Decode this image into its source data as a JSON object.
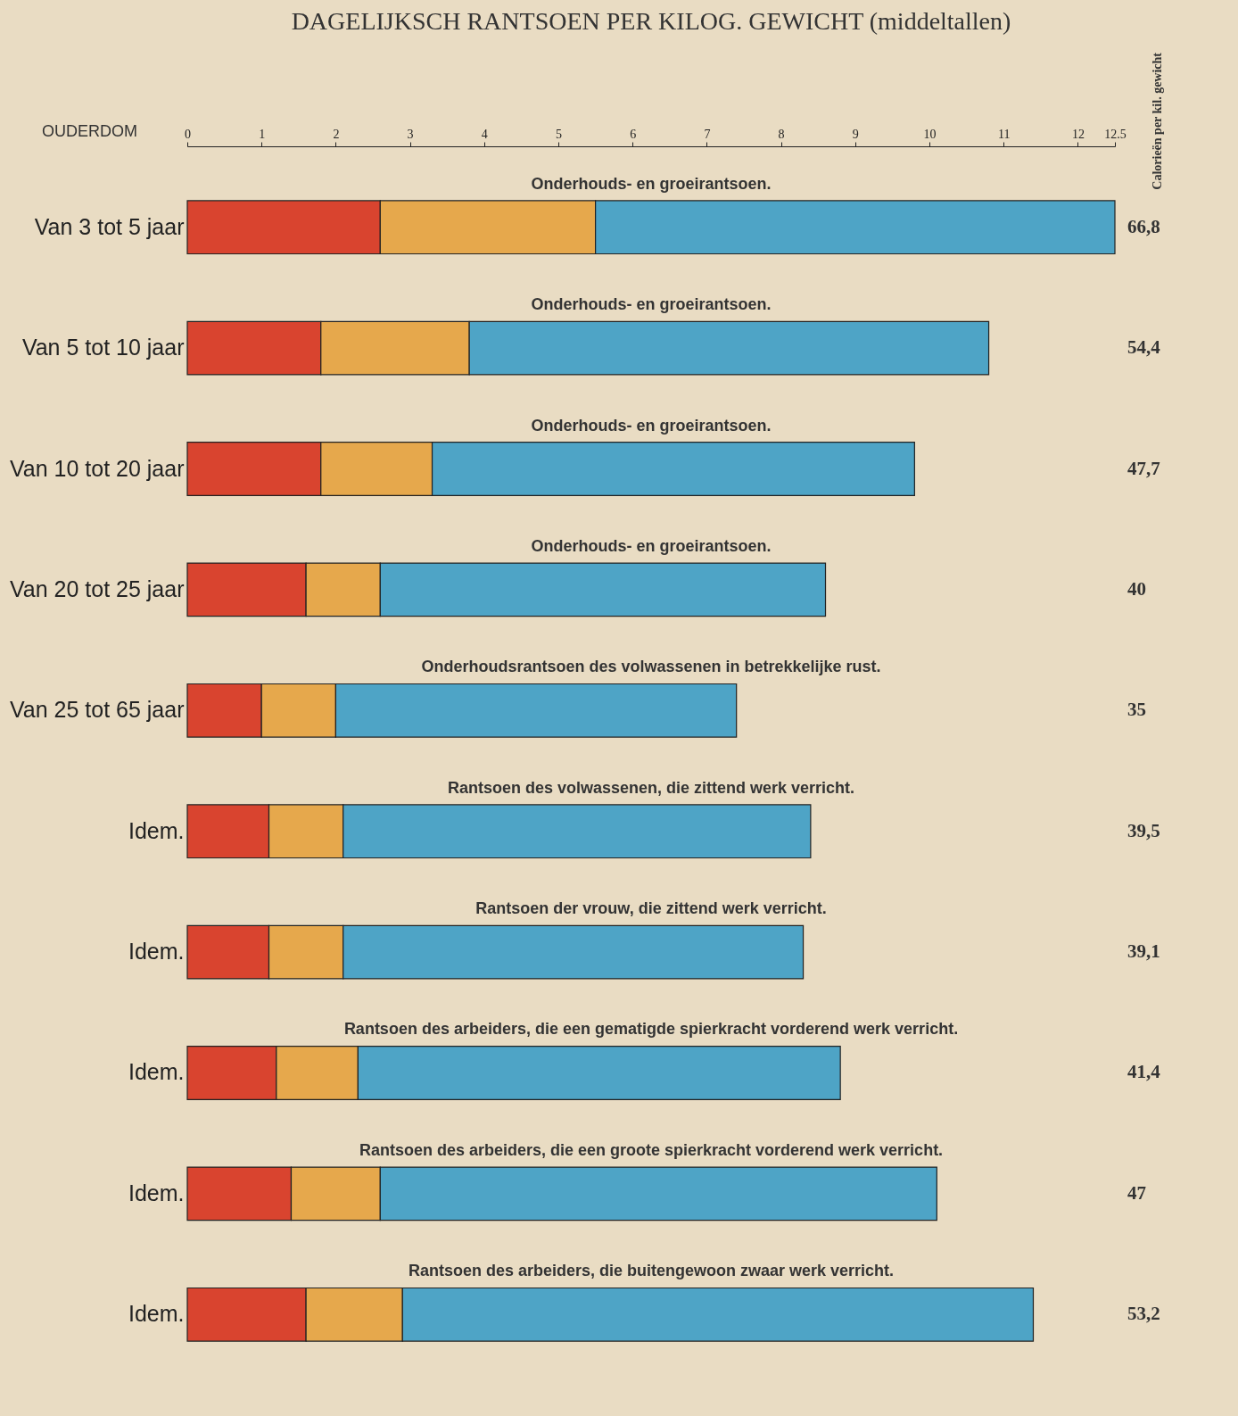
{
  "chart_data": {
    "type": "bar",
    "orientation": "horizontal",
    "stacked": true,
    "title": "DAGELIJKSCH RANTSOEN PER KILOG. GEWICHT (middeltallen)",
    "ylabel": "OUDERDOM",
    "y2label": "Calorieën per kil. gewicht",
    "categories": [
      "Van 3 tot 5 jaar",
      "Van 5 tot 10 jaar",
      "Van 10 tot 20 jaar",
      "Van 20 tot 25 jaar",
      "Van 25 tot 65 jaar",
      "Idem.",
      "Idem.",
      "Idem.",
      "Idem.",
      "Idem."
    ],
    "series": [
      {
        "color": "#d9442f",
        "values": [
          2.6,
          1.8,
          1.8,
          1.6,
          1.0,
          1.1,
          1.1,
          1.2,
          1.4,
          1.6
        ]
      },
      {
        "color": "#e6a84c",
        "values": [
          2.9,
          2.0,
          1.5,
          1.0,
          1.0,
          1.0,
          1.0,
          1.1,
          1.2,
          1.3
        ]
      },
      {
        "color": "#4ea4c6",
        "values": [
          7.0,
          7.0,
          6.5,
          6.0,
          5.4,
          6.3,
          6.2,
          6.5,
          7.5,
          8.5
        ]
      }
    ],
    "xlim": [
      0,
      12.5
    ],
    "xticks": [
      0,
      1,
      2,
      3,
      4,
      5,
      6,
      7,
      8,
      9,
      10,
      11,
      12,
      12.5
    ],
    "annotations": [
      "Onderhouds- en groeirantsoen.",
      "Onderhouds- en groeirantsoen.",
      "Onderhouds- en groeirantsoen.",
      "Onderhouds- en groeirantsoen.",
      "Onderhoudsrantsoen des volwassenen in betrekkelijke rust.",
      "Rantsoen des volwassenen, die zittend werk verricht.",
      "Rantsoen der vrouw, die zittend werk verricht.",
      "Rantsoen des arbeiders, die een gematigde spierkracht vorderend werk verricht.",
      "Rantsoen des arbeiders, die een groote spierkracht vorderend werk verricht.",
      "Rantsoen des arbeiders, die buitengewoon zwaar werk verricht.",
      "66,8",
      "54,4",
      "47,7",
      "40",
      "35",
      "39,5",
      "39,1",
      "41,4",
      "47",
      "53,2"
    ]
  }
}
